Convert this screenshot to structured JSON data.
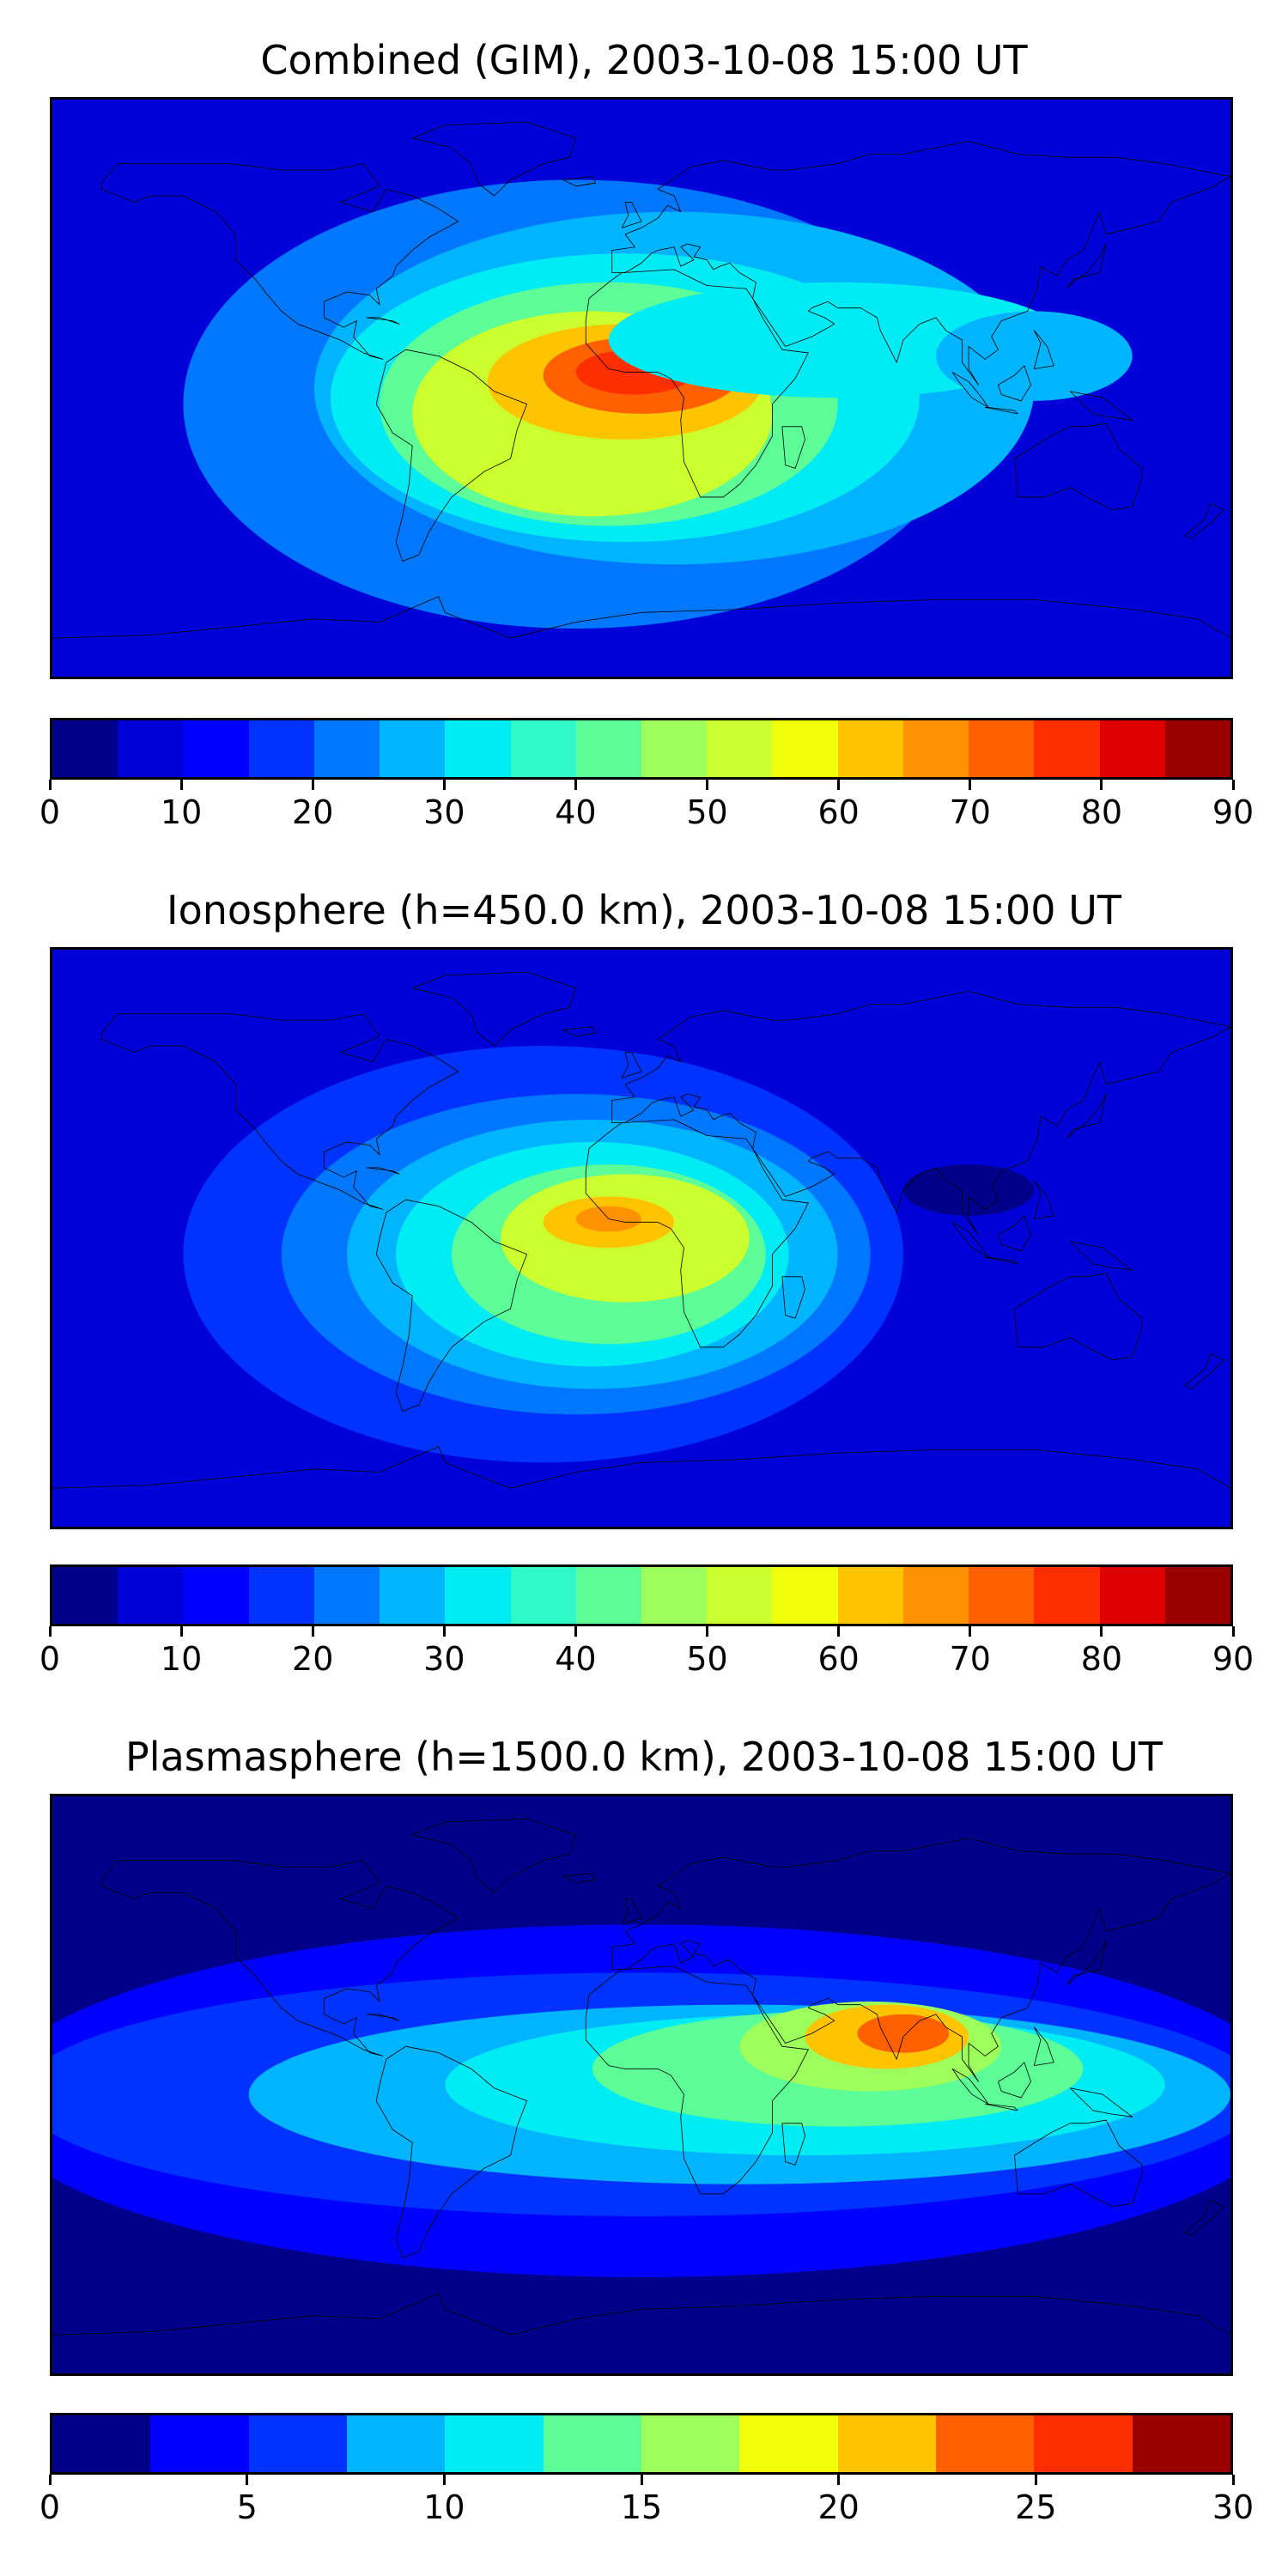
{
  "panels": [
    {
      "title": "Combined (GIM), 2003-10-08 15:00 UT",
      "colorbar": {
        "min": 0,
        "max": 90,
        "ticks": [
          "0",
          "10",
          "20",
          "30",
          "40",
          "50",
          "60",
          "70",
          "80",
          "90"
        ],
        "colors": [
          "#00008b",
          "#0000d8",
          "#0000ff",
          "#0033ff",
          "#0077ff",
          "#00b4ff",
          "#00ecf4",
          "#2ff9c8",
          "#5dfd98",
          "#9cff5b",
          "#cbff2e",
          "#f2ff0a",
          "#ffc400",
          "#ff9200",
          "#ff6000",
          "#ff2e00",
          "#dc0000",
          "#990000"
        ]
      },
      "field": {
        "background": "#0000d8",
        "blobs": [
          {
            "lon": -20,
            "lat": -5,
            "rlon": 120,
            "rlat": 70,
            "color": "#0077ff"
          },
          {
            "lon": 10,
            "lat": 0,
            "rlon": 110,
            "rlat": 55,
            "color": "#00b4ff"
          },
          {
            "lon": -5,
            "lat": -3,
            "rlon": 90,
            "rlat": 45,
            "color": "#00ecf4"
          },
          {
            "lon": -10,
            "lat": -5,
            "rlon": 70,
            "rlat": 38,
            "color": "#5dfd98"
          },
          {
            "lon": -15,
            "lat": -8,
            "rlon": 55,
            "rlat": 32,
            "color": "#cbff2e"
          },
          {
            "lon": -5,
            "lat": 2,
            "rlon": 42,
            "rlat": 18,
            "color": "#ffc400"
          },
          {
            "lon": 0,
            "lat": 4,
            "rlon": 30,
            "rlat": 12,
            "color": "#ff6000"
          },
          {
            "lon": -2,
            "lat": 5,
            "rlon": 18,
            "rlat": 7,
            "color": "#ff2e00"
          },
          {
            "lon": 60,
            "lat": 15,
            "rlon": 70,
            "rlat": 18,
            "color": "#00ecf4"
          },
          {
            "lon": 120,
            "lat": 10,
            "rlon": 30,
            "rlat": 14,
            "color": "#00b4ff"
          }
        ]
      }
    },
    {
      "title": "Ionosphere  (h=450.0 km), 2003-10-08 15:00 UT",
      "colorbar": {
        "min": 0,
        "max": 90,
        "ticks": [
          "0",
          "10",
          "20",
          "30",
          "40",
          "50",
          "60",
          "70",
          "80",
          "90"
        ],
        "colors": [
          "#00008b",
          "#0000d8",
          "#0000ff",
          "#0033ff",
          "#0077ff",
          "#00b4ff",
          "#00ecf4",
          "#2ff9c8",
          "#5dfd98",
          "#9cff5b",
          "#cbff2e",
          "#f2ff0a",
          "#ffc400",
          "#ff9200",
          "#ff6000",
          "#ff2e00",
          "#dc0000",
          "#990000"
        ]
      },
      "field": {
        "background": "#0000d8",
        "blobs": [
          {
            "lon": -30,
            "lat": -5,
            "rlon": 110,
            "rlat": 65,
            "color": "#0033ff"
          },
          {
            "lon": -20,
            "lat": -5,
            "rlon": 90,
            "rlat": 50,
            "color": "#0077ff"
          },
          {
            "lon": -15,
            "lat": -5,
            "rlon": 75,
            "rlat": 42,
            "color": "#00b4ff"
          },
          {
            "lon": -15,
            "lat": -5,
            "rlon": 60,
            "rlat": 35,
            "color": "#00ecf4"
          },
          {
            "lon": -10,
            "lat": -5,
            "rlon": 48,
            "rlat": 28,
            "color": "#5dfd98"
          },
          {
            "lon": -5,
            "lat": 0,
            "rlon": 38,
            "rlat": 20,
            "color": "#cbff2e"
          },
          {
            "lon": -10,
            "lat": 5,
            "rlon": 20,
            "rlat": 8,
            "color": "#ffc400"
          },
          {
            "lon": -10,
            "lat": 6,
            "rlon": 10,
            "rlat": 4,
            "color": "#ff9200"
          },
          {
            "lon": 100,
            "lat": 15,
            "rlon": 20,
            "rlat": 8,
            "color": "#00008b"
          }
        ]
      }
    },
    {
      "title": "Plasmasphere (h=1500.0 km), 2003-10-08 15:00 UT",
      "colorbar": {
        "min": 0,
        "max": 30,
        "ticks": [
          "0",
          "5",
          "10",
          "15",
          "20",
          "25",
          "30"
        ],
        "colors": [
          "#00008b",
          "#0000ff",
          "#0033ff",
          "#00b4ff",
          "#00ecf4",
          "#5dfd98",
          "#9cff5b",
          "#f2ff0a",
          "#ffc400",
          "#ff6000",
          "#ff2e00",
          "#990000"
        ]
      },
      "field": {
        "background": "#00008b",
        "blobs": [
          {
            "lon": 0,
            "lat": -5,
            "rlon": 200,
            "rlat": 55,
            "color": "#0000ff"
          },
          {
            "lon": 0,
            "lat": -3,
            "rlon": 190,
            "rlat": 38,
            "color": "#0033ff"
          },
          {
            "lon": 30,
            "lat": -3,
            "rlon": 150,
            "rlat": 28,
            "color": "#00b4ff"
          },
          {
            "lon": 50,
            "lat": 0,
            "rlon": 110,
            "rlat": 22,
            "color": "#00ecf4"
          },
          {
            "lon": 60,
            "lat": 5,
            "rlon": 75,
            "rlat": 18,
            "color": "#5dfd98"
          },
          {
            "lon": 70,
            "lat": 12,
            "rlon": 40,
            "rlat": 14,
            "color": "#9cff5b"
          },
          {
            "lon": 75,
            "lat": 15,
            "rlon": 25,
            "rlat": 10,
            "color": "#ffc400"
          },
          {
            "lon": 80,
            "lat": 16,
            "rlon": 14,
            "rlat": 6,
            "color": "#ff6000"
          }
        ]
      }
    }
  ]
}
